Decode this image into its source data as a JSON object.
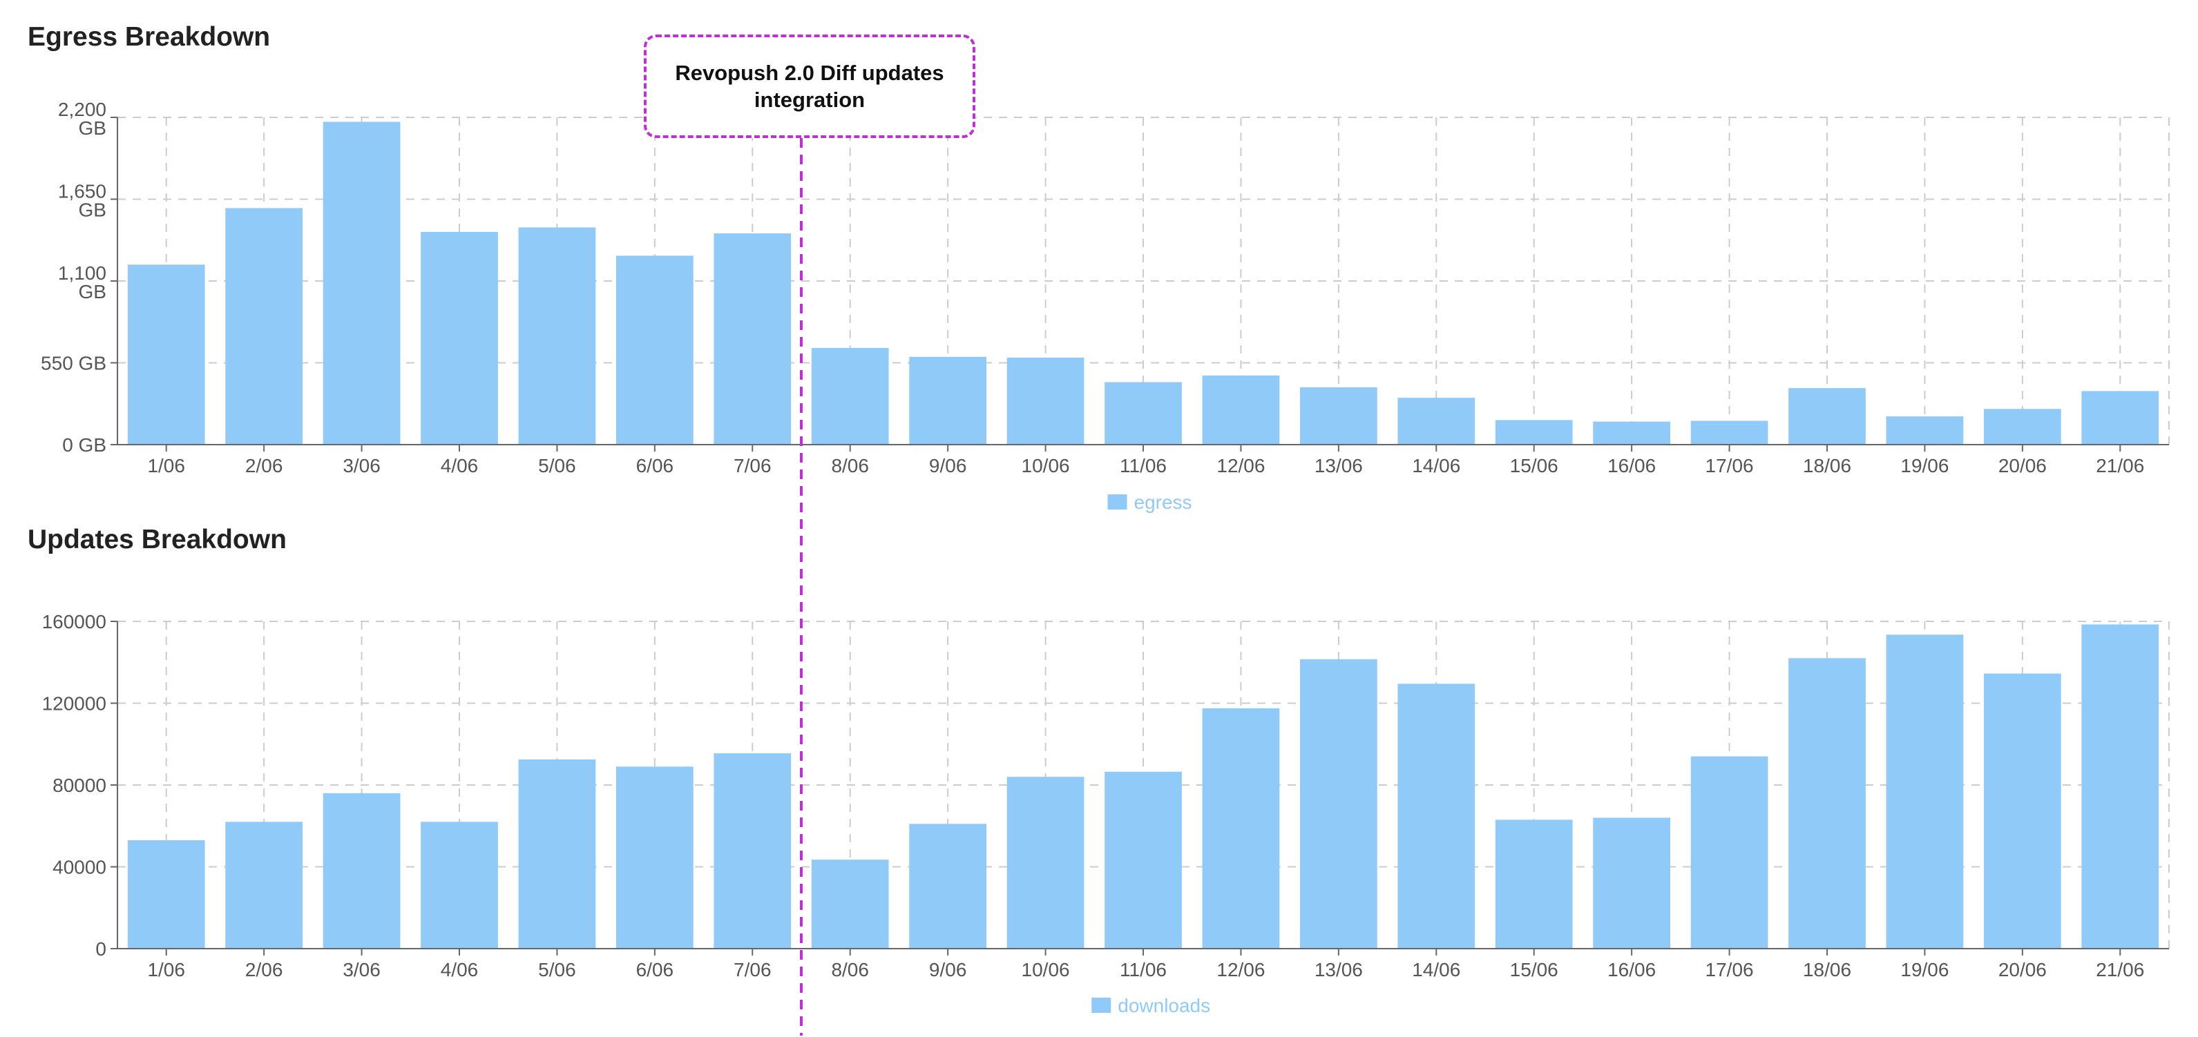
{
  "colors": {
    "bar": "#90CAF9",
    "grid": "#cccccc",
    "axis": "#666666",
    "annotation": "#c02fd6"
  },
  "annotation": {
    "label": "Revopush 2.0 Diff updates integration",
    "at_category": "8/06"
  },
  "chart_data": [
    {
      "type": "bar",
      "title": "Egress Breakdown",
      "categories": [
        "1/06",
        "2/06",
        "3/06",
        "4/06",
        "5/06",
        "6/06",
        "7/06",
        "8/06",
        "9/06",
        "10/06",
        "11/06",
        "12/06",
        "13/06",
        "14/06",
        "15/06",
        "16/06",
        "17/06",
        "18/06",
        "19/06",
        "20/06",
        "21/06"
      ],
      "series": [
        {
          "name": "egress",
          "values": [
            1210,
            1590,
            2170,
            1430,
            1460,
            1270,
            1420,
            650,
            590,
            585,
            420,
            465,
            385,
            315,
            165,
            155,
            160,
            380,
            190,
            240,
            360
          ]
        }
      ],
      "ylim": [
        0,
        2200
      ],
      "yticks": [
        "0 GB",
        "550 GB",
        "1,100 GB",
        "1,650 GB",
        "2,200 GB"
      ],
      "grid": true,
      "legend": "bottom-center"
    },
    {
      "type": "bar",
      "title": "Updates Breakdown",
      "categories": [
        "1/06",
        "2/06",
        "3/06",
        "4/06",
        "5/06",
        "6/06",
        "7/06",
        "8/06",
        "9/06",
        "10/06",
        "11/06",
        "12/06",
        "13/06",
        "14/06",
        "15/06",
        "16/06",
        "17/06",
        "18/06",
        "19/06",
        "20/06",
        "21/06"
      ],
      "series": [
        {
          "name": "downloads",
          "values": [
            53000,
            62000,
            76000,
            62000,
            92500,
            89000,
            95500,
            43500,
            61000,
            84000,
            86500,
            117500,
            141500,
            129500,
            63000,
            64000,
            94000,
            142000,
            153500,
            134500,
            158500
          ]
        }
      ],
      "ylim": [
        0,
        160000
      ],
      "yticks": [
        "0",
        "40000",
        "80000",
        "120000",
        "160000"
      ],
      "grid": true,
      "legend": "bottom-center"
    }
  ]
}
